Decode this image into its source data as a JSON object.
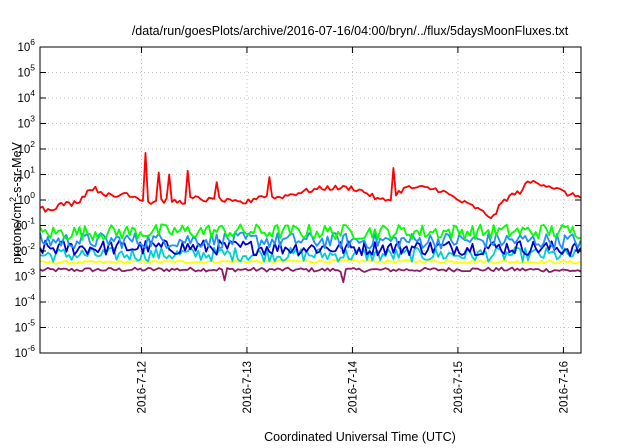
{
  "chart_data": {
    "type": "line",
    "title": "/data/run/goesPlots/archive/2016-07-16/04:00/bryn/../flux/5daysMoonFluxes.txt",
    "xlabel": "Coordinated Universal Time (UTC)",
    "ylabel": {
      "before": "protons/cm",
      "sup": "2",
      "after": "-s-sr-MeV"
    },
    "yscale": "log",
    "ylim": [
      1e-06,
      1000000.0
    ],
    "y_ticks": [
      {
        "value": 1e-06,
        "base": "10",
        "exp": "-6"
      },
      {
        "value": 1e-05,
        "base": "10",
        "exp": "-5"
      },
      {
        "value": 0.0001,
        "base": "10",
        "exp": "-4"
      },
      {
        "value": 0.001,
        "base": "10",
        "exp": "-3"
      },
      {
        "value": 0.01,
        "base": "10",
        "exp": "-2"
      },
      {
        "value": 0.1,
        "base": "10",
        "exp": "-1"
      },
      {
        "value": 1,
        "base": "10",
        "exp": "0"
      },
      {
        "value": 10,
        "base": "10",
        "exp": "1"
      },
      {
        "value": 100,
        "base": "10",
        "exp": "2"
      },
      {
        "value": 1000,
        "base": "10",
        "exp": "3"
      },
      {
        "value": 10000,
        "base": "10",
        "exp": "4"
      },
      {
        "value": 100000,
        "base": "10",
        "exp": "5"
      },
      {
        "value": 1000000,
        "base": "10",
        "exp": "6"
      }
    ],
    "xlim": [
      "2016-07-11 00:55",
      "2016-07-16 04:00"
    ],
    "x_ticks": [
      {
        "value": "2016-07-12 00:00",
        "label": "2016-7-12"
      },
      {
        "value": "2016-07-13 00:00",
        "label": "2016-7-13"
      },
      {
        "value": "2016-07-14 00:00",
        "label": "2016-7-14"
      },
      {
        "value": "2016-07-15 00:00",
        "label": "2016-7-15"
      },
      {
        "value": "2016-07-16 00:00",
        "label": "2016-7-16"
      }
    ],
    "grid": true,
    "legend": "none",
    "series": [
      {
        "color": "#8b1c62",
        "level": 0.0018,
        "noise": 0.08,
        "spikes": [
          [
            "2016-07-12 19:00",
            0.0007
          ],
          [
            "2016-07-13 22:00",
            0.0006
          ]
        ],
        "x": [
          "2016-07-11 00:55",
          "2016-07-12 12:00",
          "2016-07-14 00:00",
          "2016-07-15 12:00",
          "2016-07-16 04:00"
        ],
        "values": [
          0.0018,
          0.0019,
          0.0018,
          0.0019,
          0.0017
        ]
      },
      {
        "color": "#ffff00",
        "level": 0.0038,
        "noise": 0.06,
        "spikes": [],
        "x": [
          "2016-07-11 00:55",
          "2016-07-12 12:00",
          "2016-07-14 00:00",
          "2016-07-15 12:00",
          "2016-07-16 04:00"
        ],
        "values": [
          0.0035,
          0.0038,
          0.004,
          0.0038,
          0.0036
        ]
      },
      {
        "color": "#00ced1",
        "level": 0.007,
        "noise": 0.28,
        "spikes": [],
        "x": [
          "2016-07-11 00:55",
          "2016-07-12 12:00",
          "2016-07-14 00:00",
          "2016-07-15 12:00",
          "2016-07-16 04:00"
        ],
        "values": [
          0.007,
          0.0075,
          0.007,
          0.0072,
          0.0068
        ]
      },
      {
        "color": "#0000cd",
        "level": 0.013,
        "noise": 0.3,
        "spikes": [],
        "x": [
          "2016-07-11 00:55",
          "2016-07-12 12:00",
          "2016-07-14 00:00",
          "2016-07-15 12:00",
          "2016-07-16 04:00"
        ],
        "values": [
          0.013,
          0.014,
          0.013,
          0.014,
          0.012
        ]
      },
      {
        "color": "#1e90ff",
        "level": 0.025,
        "noise": 0.32,
        "spikes": [],
        "x": [
          "2016-07-11 00:55",
          "2016-07-12 12:00",
          "2016-07-14 00:00",
          "2016-07-15 12:00",
          "2016-07-16 04:00"
        ],
        "values": [
          0.025,
          0.027,
          0.025,
          0.026,
          0.024
        ]
      },
      {
        "color": "#00ff00",
        "level": 0.055,
        "noise": 0.3,
        "spikes": [],
        "x": [
          "2016-07-11 00:55",
          "2016-07-12 12:00",
          "2016-07-14 00:00",
          "2016-07-15 12:00",
          "2016-07-16 04:00"
        ],
        "values": [
          0.05,
          0.06,
          0.055,
          0.058,
          0.06
        ]
      },
      {
        "color": "#ff0000",
        "level": 1,
        "noise": 0.1,
        "spikes": [
          [
            "2016-07-12 00:50",
            70
          ],
          [
            "2016-07-12 04:00",
            12
          ],
          [
            "2016-07-12 06:30",
            10
          ],
          [
            "2016-07-12 10:30",
            14
          ],
          [
            "2016-07-12 17:00",
            5
          ],
          [
            "2016-07-13 05:00",
            8
          ],
          [
            "2016-07-14 09:30",
            18
          ]
        ],
        "x": [
          "2016-07-11 00:55",
          "2016-07-11 02:00",
          "2016-07-11 04:00",
          "2016-07-11 06:00",
          "2016-07-11 08:00",
          "2016-07-11 10:00",
          "2016-07-11 12:00",
          "2016-07-11 13:00",
          "2016-07-11 15:00",
          "2016-07-11 18:00",
          "2016-07-11 20:00",
          "2016-07-11 22:00",
          "2016-07-12 02:00",
          "2016-07-12 06:00",
          "2016-07-12 09:00",
          "2016-07-12 12:00",
          "2016-07-12 15:00",
          "2016-07-12 18:00",
          "2016-07-12 21:00",
          "2016-07-13 00:00",
          "2016-07-13 03:00",
          "2016-07-13 06:00",
          "2016-07-13 09:00",
          "2016-07-13 12:00",
          "2016-07-13 15:00",
          "2016-07-13 18:00",
          "2016-07-13 21:00",
          "2016-07-14 00:00",
          "2016-07-14 03:00",
          "2016-07-14 06:00",
          "2016-07-14 08:00",
          "2016-07-14 12:00",
          "2016-07-14 16:00",
          "2016-07-14 20:00",
          "2016-07-15 00:00",
          "2016-07-15 02:00",
          "2016-07-15 04:00",
          "2016-07-15 06:00",
          "2016-07-15 08:00",
          "2016-07-15 10:00",
          "2016-07-15 12:00",
          "2016-07-15 14:00",
          "2016-07-15 16:00",
          "2016-07-15 18:00",
          "2016-07-15 20:00",
          "2016-07-15 22:00",
          "2016-07-16 00:00",
          "2016-07-16 02:00",
          "2016-07-16 04:00"
        ],
        "values": [
          0.6,
          0.4,
          0.5,
          0.7,
          0.7,
          1.0,
          2.5,
          3.0,
          2.0,
          1.2,
          2.0,
          1.5,
          0.8,
          1.0,
          0.8,
          1.2,
          1.0,
          1.0,
          0.8,
          0.8,
          1.5,
          1.2,
          1.5,
          2.0,
          2.5,
          3.0,
          3.0,
          3.0,
          2.0,
          1.0,
          1.0,
          3.0,
          3.0,
          2.5,
          1.0,
          0.7,
          0.5,
          0.3,
          0.2,
          0.8,
          1.5,
          2.0,
          5.0,
          5.0,
          4.0,
          3.0,
          2.0,
          1.5,
          1.5
        ]
      }
    ]
  }
}
